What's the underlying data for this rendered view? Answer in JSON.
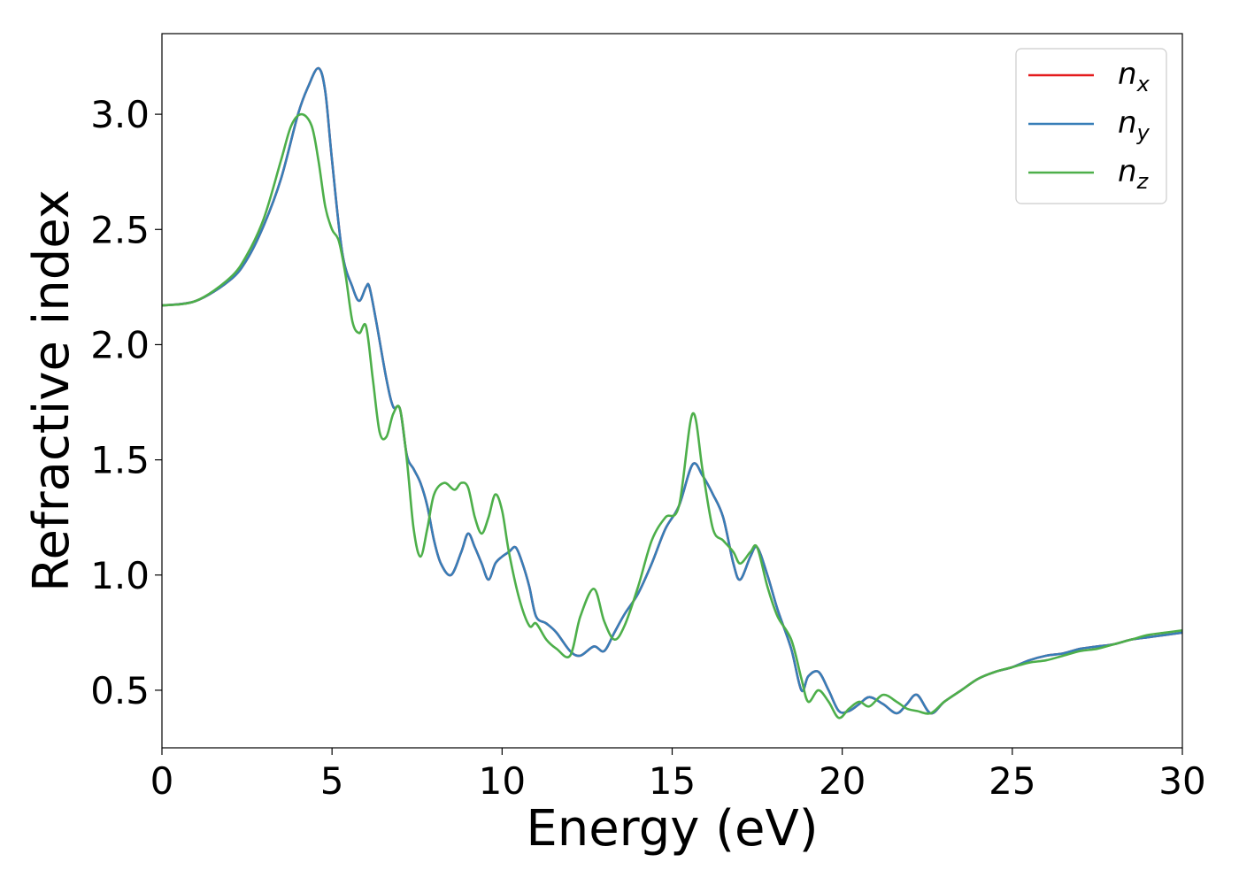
{
  "chart_data": {
    "type": "line",
    "title": "",
    "xlabel": "Energy (eV)",
    "ylabel": "Refractive index",
    "xlim": [
      0,
      30
    ],
    "ylim": [
      0.25,
      3.35
    ],
    "xticks": [
      0,
      5,
      10,
      15,
      20,
      25,
      30
    ],
    "yticks": [
      0.5,
      1.0,
      1.5,
      2.0,
      2.5,
      3.0
    ],
    "xtick_labels": [
      "0",
      "5",
      "10",
      "15",
      "20",
      "25",
      "30"
    ],
    "ytick_labels": [
      "0.5",
      "1.0",
      "1.5",
      "2.0",
      "2.5",
      "3.0"
    ],
    "grid": false,
    "legend_position": "top-right",
    "series": [
      {
        "name": "n",
        "subscript": "x",
        "color": "#e41a1c",
        "x": [
          0,
          1,
          2,
          2.5,
          3,
          3.5,
          4,
          4.3,
          4.6,
          4.8,
          5,
          5.3,
          5.6,
          5.8,
          6,
          6.1,
          6.3,
          6.6,
          6.8,
          7,
          7.2,
          7.4,
          7.6,
          7.8,
          8,
          8.2,
          8.5,
          8.8,
          9,
          9.2,
          9.4,
          9.6,
          9.8,
          10,
          10.2,
          10.4,
          10.6,
          10.8,
          11,
          11.3,
          11.6,
          12,
          12.3,
          12.7,
          13,
          13.3,
          13.6,
          14,
          14.4,
          14.8,
          15.2,
          15.6,
          15.9,
          16.2,
          16.5,
          16.8,
          17,
          17.3,
          17.5,
          17.8,
          18.1,
          18.5,
          18.8,
          19,
          19.3,
          19.6,
          19.9,
          20.2,
          20.5,
          20.8,
          21.2,
          21.6,
          21.9,
          22.2,
          22.6,
          23,
          23.5,
          24,
          24.5,
          25,
          25.5,
          26,
          26.5,
          27,
          27.5,
          28,
          28.5,
          29,
          29.5,
          30
        ],
        "y": [
          2.17,
          2.19,
          2.28,
          2.37,
          2.52,
          2.72,
          3.0,
          3.12,
          3.2,
          3.1,
          2.8,
          2.4,
          2.25,
          2.19,
          2.25,
          2.25,
          2.1,
          1.85,
          1.73,
          1.72,
          1.52,
          1.46,
          1.4,
          1.3,
          1.15,
          1.05,
          1.0,
          1.1,
          1.18,
          1.12,
          1.05,
          0.98,
          1.05,
          1.08,
          1.1,
          1.12,
          1.05,
          0.95,
          0.82,
          0.79,
          0.75,
          0.67,
          0.65,
          0.69,
          0.67,
          0.75,
          0.83,
          0.92,
          1.05,
          1.2,
          1.3,
          1.48,
          1.43,
          1.35,
          1.25,
          1.05,
          0.98,
          1.08,
          1.12,
          1.0,
          0.85,
          0.68,
          0.5,
          0.56,
          0.58,
          0.5,
          0.41,
          0.41,
          0.44,
          0.47,
          0.44,
          0.4,
          0.44,
          0.48,
          0.4,
          0.45,
          0.5,
          0.55,
          0.58,
          0.6,
          0.63,
          0.65,
          0.66,
          0.68,
          0.69,
          0.7,
          0.72,
          0.73,
          0.74,
          0.75
        ]
      },
      {
        "name": "n",
        "subscript": "y",
        "color": "#377eb8",
        "x": [
          0,
          1,
          2,
          2.5,
          3,
          3.5,
          4,
          4.3,
          4.6,
          4.8,
          5,
          5.3,
          5.6,
          5.8,
          6,
          6.1,
          6.3,
          6.6,
          6.8,
          7,
          7.2,
          7.4,
          7.6,
          7.8,
          8,
          8.2,
          8.5,
          8.8,
          9,
          9.2,
          9.4,
          9.6,
          9.8,
          10,
          10.2,
          10.4,
          10.6,
          10.8,
          11,
          11.3,
          11.6,
          12,
          12.3,
          12.7,
          13,
          13.3,
          13.6,
          14,
          14.4,
          14.8,
          15.2,
          15.6,
          15.9,
          16.2,
          16.5,
          16.8,
          17,
          17.3,
          17.5,
          17.8,
          18.1,
          18.5,
          18.8,
          19,
          19.3,
          19.6,
          19.9,
          20.2,
          20.5,
          20.8,
          21.2,
          21.6,
          21.9,
          22.2,
          22.6,
          23,
          23.5,
          24,
          24.5,
          25,
          25.5,
          26,
          26.5,
          27,
          27.5,
          28,
          28.5,
          29,
          29.5,
          30
        ],
        "y": [
          2.17,
          2.19,
          2.28,
          2.37,
          2.52,
          2.72,
          3.0,
          3.12,
          3.2,
          3.1,
          2.8,
          2.4,
          2.25,
          2.19,
          2.25,
          2.25,
          2.1,
          1.85,
          1.73,
          1.72,
          1.52,
          1.46,
          1.4,
          1.3,
          1.15,
          1.05,
          1.0,
          1.1,
          1.18,
          1.12,
          1.05,
          0.98,
          1.05,
          1.08,
          1.1,
          1.12,
          1.05,
          0.95,
          0.82,
          0.79,
          0.75,
          0.67,
          0.65,
          0.69,
          0.67,
          0.75,
          0.83,
          0.92,
          1.05,
          1.2,
          1.3,
          1.48,
          1.43,
          1.35,
          1.25,
          1.05,
          0.98,
          1.08,
          1.12,
          1.0,
          0.85,
          0.68,
          0.5,
          0.56,
          0.58,
          0.5,
          0.41,
          0.41,
          0.44,
          0.47,
          0.44,
          0.4,
          0.44,
          0.48,
          0.4,
          0.45,
          0.5,
          0.55,
          0.58,
          0.6,
          0.63,
          0.65,
          0.66,
          0.68,
          0.69,
          0.7,
          0.72,
          0.73,
          0.74,
          0.75
        ]
      },
      {
        "name": "n",
        "subscript": "z",
        "color": "#4daf4a",
        "x": [
          0,
          1,
          2,
          2.5,
          3,
          3.5,
          3.8,
          4.1,
          4.4,
          4.6,
          4.8,
          5,
          5.2,
          5.4,
          5.6,
          5.8,
          6,
          6.2,
          6.4,
          6.6,
          6.8,
          7,
          7.2,
          7.4,
          7.6,
          7.8,
          8,
          8.3,
          8.6,
          8.8,
          9,
          9.2,
          9.4,
          9.6,
          9.8,
          10,
          10.2,
          10.5,
          10.8,
          11,
          11.3,
          11.6,
          12,
          12.3,
          12.7,
          13,
          13.3,
          13.6,
          14,
          14.4,
          14.8,
          15.2,
          15.6,
          15.9,
          16.2,
          16.5,
          16.8,
          17,
          17.3,
          17.5,
          17.8,
          18.1,
          18.5,
          18.8,
          19,
          19.3,
          19.6,
          19.9,
          20.2,
          20.5,
          20.8,
          21.2,
          21.6,
          21.9,
          22.2,
          22.6,
          23,
          23.5,
          24,
          24.5,
          25,
          25.5,
          26,
          26.5,
          27,
          27.5,
          28,
          28.5,
          29,
          29.5,
          30
        ],
        "y": [
          2.17,
          2.19,
          2.29,
          2.39,
          2.55,
          2.8,
          2.95,
          3.0,
          2.95,
          2.8,
          2.6,
          2.5,
          2.45,
          2.3,
          2.1,
          2.05,
          2.08,
          1.85,
          1.62,
          1.6,
          1.7,
          1.72,
          1.5,
          1.2,
          1.08,
          1.2,
          1.35,
          1.4,
          1.37,
          1.4,
          1.38,
          1.25,
          1.18,
          1.25,
          1.35,
          1.28,
          1.1,
          0.9,
          0.78,
          0.79,
          0.72,
          0.68,
          0.65,
          0.82,
          0.94,
          0.8,
          0.72,
          0.78,
          0.95,
          1.15,
          1.25,
          1.3,
          1.7,
          1.45,
          1.2,
          1.15,
          1.1,
          1.05,
          1.1,
          1.12,
          0.95,
          0.82,
          0.72,
          0.55,
          0.45,
          0.5,
          0.45,
          0.38,
          0.42,
          0.45,
          0.43,
          0.48,
          0.45,
          0.42,
          0.41,
          0.4,
          0.45,
          0.5,
          0.55,
          0.58,
          0.6,
          0.62,
          0.63,
          0.65,
          0.67,
          0.68,
          0.7,
          0.72,
          0.74,
          0.75,
          0.76
        ]
      }
    ]
  }
}
